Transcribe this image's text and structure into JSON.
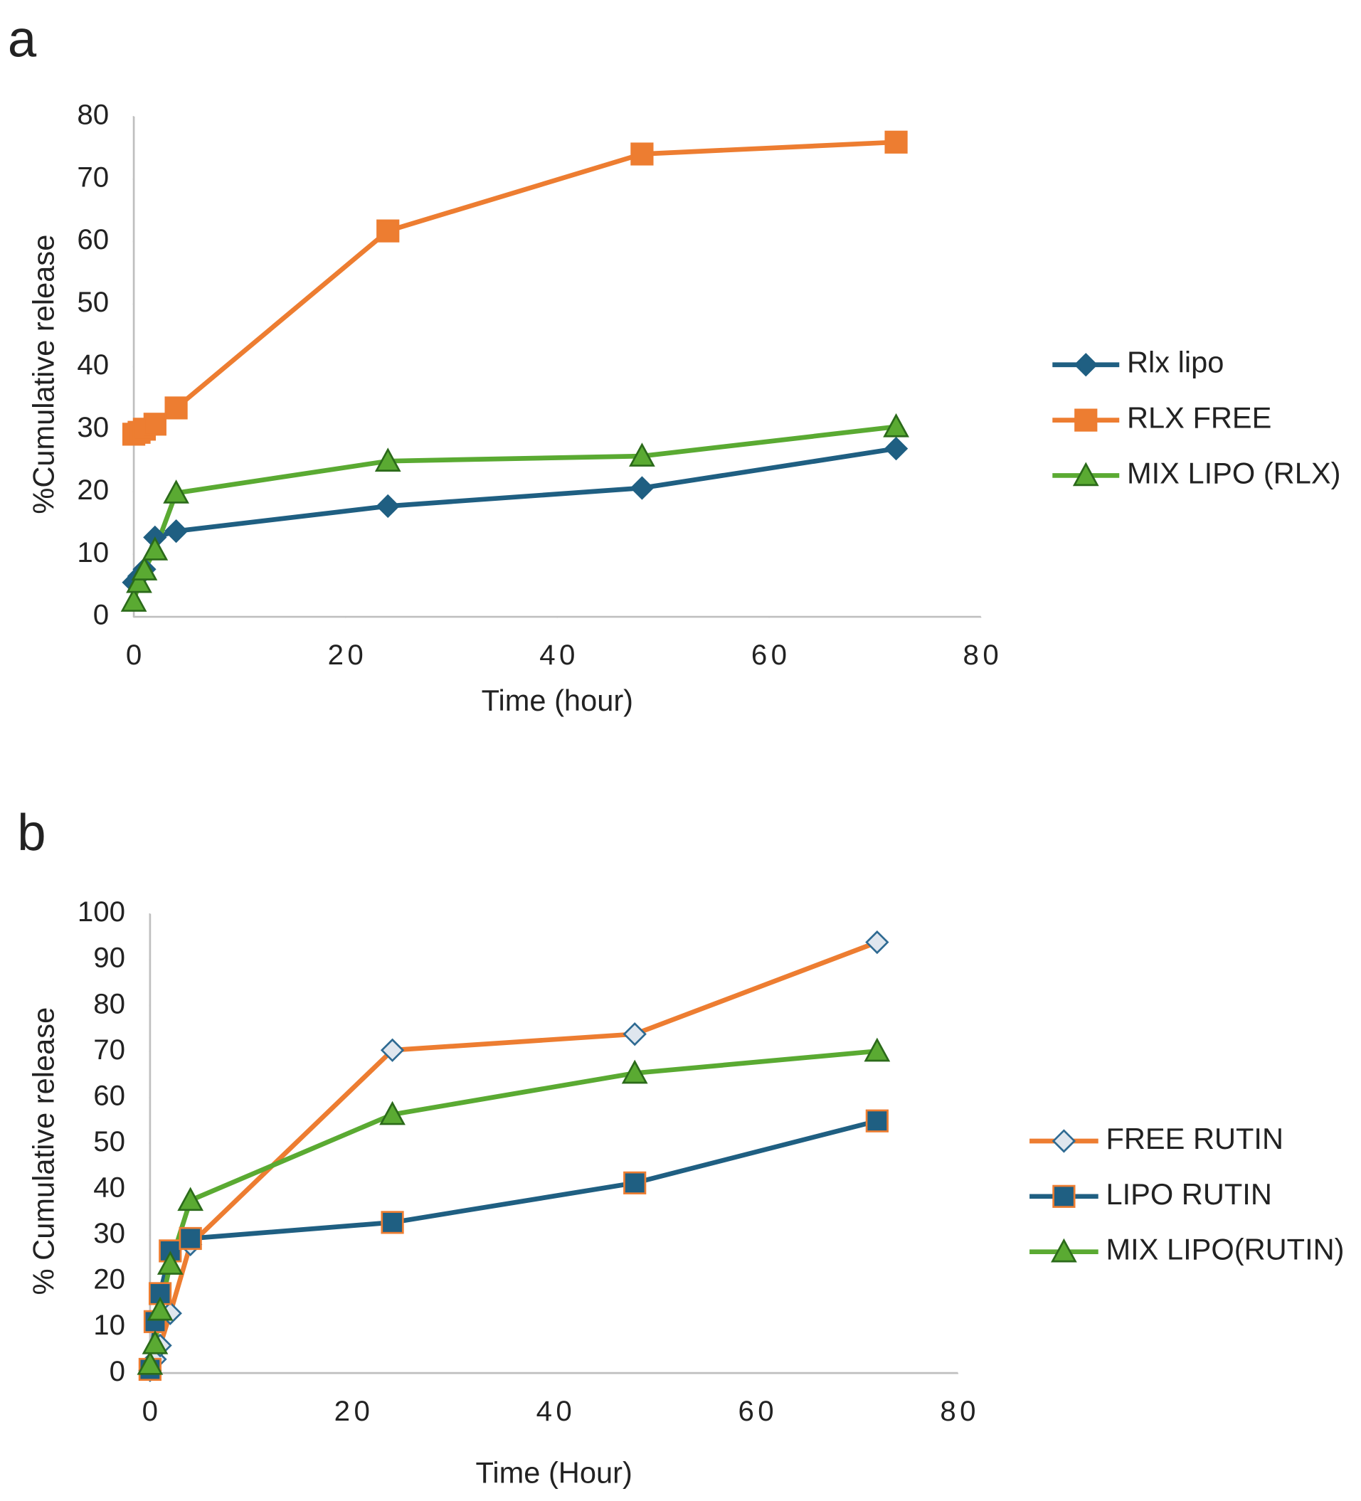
{
  "chart_data": [
    {
      "type": "line",
      "label": "a",
      "y_label": "%Cumulative release",
      "x_label": "Time (hour)",
      "xlim": [
        0,
        80
      ],
      "xticks": [
        0,
        20,
        40,
        60,
        80
      ],
      "ylim": [
        0,
        80
      ],
      "yticks": [
        0,
        10,
        20,
        30,
        40,
        50,
        60,
        70,
        80
      ],
      "grid": false,
      "legend": "right",
      "x": [
        0,
        0.5,
        1,
        2,
        4,
        24,
        48,
        72
      ],
      "series": [
        {
          "name": "Rlx lipo",
          "color": "#1f5f82",
          "marker": "diamond",
          "marker_fill": "#1f5f82",
          "marker_edge": "#1f5f82",
          "values": [
            5.5,
            6.5,
            7.6,
            12.7,
            13.7,
            17.7,
            20.6,
            26.9
          ]
        },
        {
          "name": "RLX FREE",
          "color": "#ed7d31",
          "marker": "square",
          "marker_fill": "#ed7d31",
          "marker_edge": "#ed7d31",
          "values": [
            29.2,
            29.5,
            30,
            30.8,
            33.4,
            61.7,
            74,
            75.9
          ]
        },
        {
          "name": "MIX LIPO (RLX)",
          "color": "#5aaa32",
          "marker": "triangle",
          "marker_fill": "#5aaa32",
          "marker_edge": "#2b6a1a",
          "values": [
            2.5,
            5.5,
            7.5,
            10.7,
            19.8,
            24.9,
            25.7,
            30.4
          ]
        }
      ]
    },
    {
      "type": "line",
      "label": "b",
      "y_label": "% Cumulative release",
      "x_label": "Time (Hour)",
      "xlim": [
        0,
        80
      ],
      "xticks": [
        0,
        20,
        40,
        60,
        80
      ],
      "ylim": [
        0,
        100
      ],
      "yticks": [
        0,
        10,
        20,
        30,
        40,
        50,
        60,
        70,
        80,
        90,
        100
      ],
      "grid": false,
      "legend": "right",
      "x": [
        0,
        0.5,
        1,
        2,
        4,
        24,
        48,
        72
      ],
      "series": [
        {
          "name": "FREE RUTIN",
          "color": "#ed7d31",
          "marker": "diamond",
          "marker_fill": "#dfe6ee",
          "marker_edge": "#2e6a92",
          "values": [
            0.6,
            3,
            6,
            13,
            28,
            70.3,
            73.8,
            93.8
          ]
        },
        {
          "name": "LIPO RUTIN",
          "color": "#1f5f82",
          "marker": "square",
          "marker_fill": "#1f5f82",
          "marker_edge": "#ed7d31",
          "values": [
            0.8,
            11.2,
            17.3,
            26.6,
            29.3,
            32.8,
            41.4,
            54.9
          ]
        },
        {
          "name": "MIX LIPO(RUTIN)",
          "color": "#5aaa32",
          "marker": "triangle",
          "marker_fill": "#5aaa32",
          "marker_edge": "#2b6a1a",
          "values": [
            1.9,
            6.4,
            13.7,
            23.7,
            37.6,
            56.3,
            65.3,
            70.1
          ]
        }
      ]
    }
  ]
}
